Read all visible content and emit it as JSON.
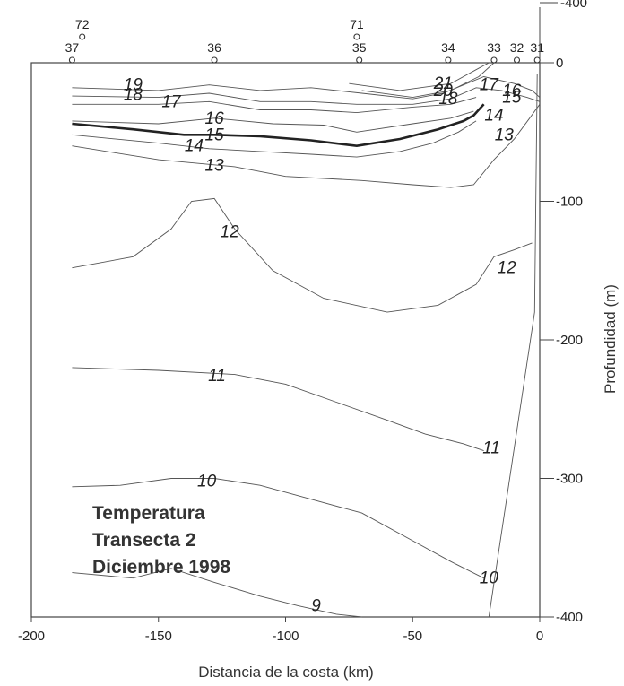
{
  "chart_data": {
    "type": "line",
    "xlabel": "Distancia de la costa (km)",
    "ylabel": "Profundidad (m)",
    "xlim": [
      -200,
      0
    ],
    "ylim": [
      -400,
      0
    ],
    "x_ticks": [
      -200,
      -150,
      -100,
      -50,
      0
    ],
    "y_ticks_right": [
      0,
      -100,
      -200,
      -300,
      -400
    ],
    "top_right_tick": "-400",
    "annotation": [
      "Temperatura",
      "Transecta 2",
      "Diciembre 1998"
    ],
    "stations": [
      {
        "label": "37",
        "x": -184
      },
      {
        "label": "72",
        "x": -180
      },
      {
        "label": "36",
        "x": -128
      },
      {
        "label": "71",
        "x": -72
      },
      {
        "label": "35",
        "x": -71
      },
      {
        "label": "34",
        "x": -36
      },
      {
        "label": "33",
        "x": -18
      },
      {
        "label": "32",
        "x": -9
      },
      {
        "label": "31",
        "x": -1
      }
    ],
    "series": [
      {
        "name": "21",
        "bold": false,
        "x": [
          -75,
          -55,
          -35,
          -25,
          -20
        ],
        "y": [
          -15,
          -20,
          -15,
          -5,
          0
        ]
      },
      {
        "name": "20",
        "bold": false,
        "x": [
          -70,
          -50,
          -35,
          -24,
          -18
        ],
        "y": [
          -20,
          -25,
          -20,
          -10,
          0
        ]
      },
      {
        "name": "19",
        "bold": false,
        "x": [
          -184,
          -150,
          -130,
          -110,
          -90,
          -70,
          -50,
          -38,
          -22,
          -10,
          -3,
          0
        ],
        "y": [
          -18,
          -20,
          -16,
          -20,
          -18,
          -22,
          -26,
          -22,
          -10,
          -15,
          -20,
          -25
        ]
      },
      {
        "name": "18",
        "bold": false,
        "x": [
          -184,
          -150,
          -130,
          -110,
          -90,
          -72,
          -50,
          -35,
          -25,
          -15,
          -5,
          0
        ],
        "y": [
          -24,
          -25,
          -22,
          -28,
          -28,
          -30,
          -30,
          -26,
          -18,
          -20,
          -25,
          -28
        ]
      },
      {
        "name": "17",
        "bold": false,
        "x": [
          -184,
          -150,
          -130,
          -110,
          -90,
          -72,
          -50,
          -35,
          -25
        ],
        "y": [
          -30,
          -30,
          -28,
          -34,
          -34,
          -36,
          -32,
          -30,
          -25
        ]
      },
      {
        "name": "16",
        "bold": false,
        "x": [
          -184,
          -150,
          -128,
          -105,
          -85,
          -72,
          -50,
          -35,
          -26
        ],
        "y": [
          -42,
          -44,
          -40,
          -44,
          -45,
          -50,
          -44,
          -40,
          -35
        ]
      },
      {
        "name": "15",
        "bold": true,
        "x": [
          -184,
          -160,
          -140,
          -128,
          -110,
          -90,
          -72,
          -55,
          -40,
          -30,
          -26,
          -22
        ],
        "y": [
          -44,
          -48,
          -52,
          -52,
          -53,
          -56,
          -60,
          -55,
          -48,
          -42,
          -38,
          -30
        ]
      },
      {
        "name": "14",
        "bold": false,
        "x": [
          -184,
          -150,
          -130,
          -110,
          -90,
          -72,
          -55,
          -42,
          -32,
          -25
        ],
        "y": [
          -52,
          -58,
          -62,
          -64,
          -66,
          -68,
          -64,
          -58,
          -50,
          -42
        ]
      },
      {
        "name": "13",
        "bold": false,
        "x": [
          -184,
          -150,
          -120,
          -100,
          -70,
          -50,
          -35,
          -26,
          -18,
          -10,
          -4,
          0
        ],
        "y": [
          -60,
          -70,
          -75,
          -82,
          -85,
          -88,
          -90,
          -88,
          -70,
          -55,
          -40,
          -30
        ]
      },
      {
        "name": "12",
        "bold": false,
        "x": [
          -184,
          -160,
          -145,
          -137,
          -128,
          -120,
          -105,
          -85,
          -60,
          -40,
          -25,
          -18,
          -10,
          -3
        ],
        "y": [
          -148,
          -140,
          -120,
          -100,
          -98,
          -120,
          -150,
          -170,
          -180,
          -175,
          -160,
          -140,
          -135,
          -130
        ]
      },
      {
        "name": "11",
        "bold": false,
        "x": [
          -184,
          -150,
          -120,
          -100,
          -80,
          -60,
          -45,
          -30,
          -22
        ],
        "y": [
          -220,
          -222,
          -225,
          -232,
          -245,
          -258,
          -268,
          -275,
          -280
        ]
      },
      {
        "name": "10",
        "bold": false,
        "x": [
          -184,
          -165,
          -145,
          -128,
          -110,
          -90,
          -70,
          -50,
          -35,
          -22
        ],
        "y": [
          -306,
          -305,
          -300,
          -300,
          -305,
          -315,
          -325,
          -345,
          -360,
          -372
        ]
      },
      {
        "name": "9",
        "bold": false,
        "x": [
          -184,
          -160,
          -145,
          -128,
          -110,
          -95,
          -80,
          -70
        ],
        "y": [
          -368,
          -372,
          -365,
          -375,
          -385,
          -392,
          -398,
          -400
        ]
      }
    ],
    "contour_labels": [
      {
        "text": "21",
        "x": -38,
        "y": -15
      },
      {
        "text": "20",
        "x": -38,
        "y": -20
      },
      {
        "text": "19",
        "x": -160,
        "y": -16
      },
      {
        "text": "18",
        "x": -160,
        "y": -23
      },
      {
        "text": "18",
        "x": -36,
        "y": -26
      },
      {
        "text": "17",
        "x": -145,
        "y": -28
      },
      {
        "text": "17",
        "x": -20,
        "y": -16
      },
      {
        "text": "16",
        "x": -11,
        "y": -20
      },
      {
        "text": "15",
        "x": -11,
        "y": -25
      },
      {
        "text": "16",
        "x": -128,
        "y": -40
      },
      {
        "text": "15",
        "x": -128,
        "y": -52
      },
      {
        "text": "14",
        "x": -136,
        "y": -60
      },
      {
        "text": "14",
        "x": -18,
        "y": -38
      },
      {
        "text": "13",
        "x": -128,
        "y": -74
      },
      {
        "text": "13",
        "x": -14,
        "y": -52
      },
      {
        "text": "12",
        "x": -122,
        "y": -122
      },
      {
        "text": "12",
        "x": -13,
        "y": -148
      },
      {
        "text": "11",
        "x": -127,
        "y": -226
      },
      {
        "text": "11",
        "x": -19,
        "y": -278
      },
      {
        "text": "10",
        "x": -131,
        "y": -302
      },
      {
        "text": "10",
        "x": -20,
        "y": -372
      },
      {
        "text": "9",
        "x": -88,
        "y": -392
      }
    ],
    "shelf_line": {
      "x": [
        -1,
        -2,
        -20
      ],
      "y": [
        -8,
        -180,
        -400
      ]
    },
    "grid": false,
    "legend": "none"
  }
}
